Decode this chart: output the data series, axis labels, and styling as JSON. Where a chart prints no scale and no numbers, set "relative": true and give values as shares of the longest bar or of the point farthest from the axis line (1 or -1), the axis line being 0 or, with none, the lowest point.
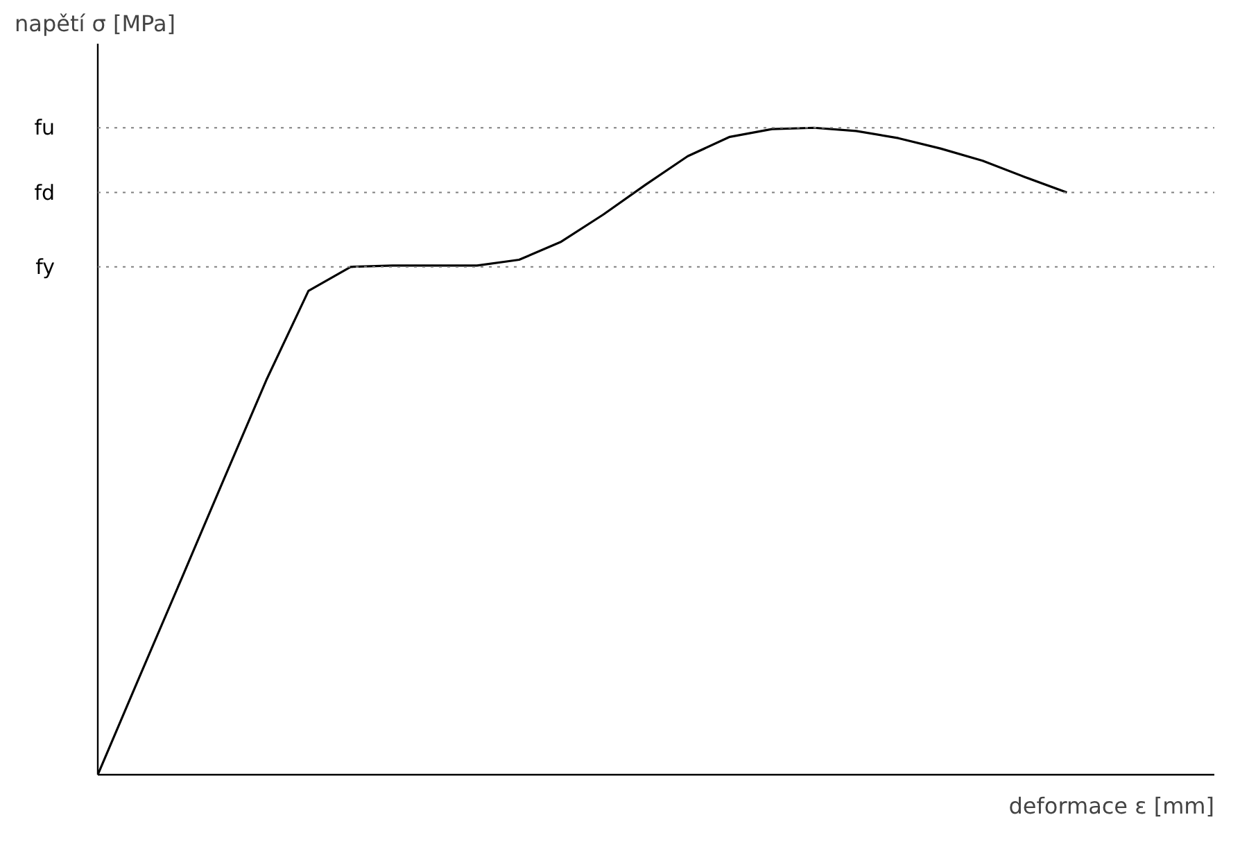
{
  "chart_data": {
    "type": "line",
    "relative": true,
    "xlabel": "deformace ε [mm]",
    "ylabel": "napětí σ [MPa]",
    "categories": [
      null,
      null,
      null,
      null,
      null,
      null,
      null,
      null,
      null,
      null,
      null,
      null,
      null,
      null,
      null,
      null,
      null,
      null,
      null,
      null,
      null,
      null,
      null,
      null
    ],
    "series": [
      {
        "color": "#000000",
        "values": [
          0,
          0.153,
          0.305,
          0.458,
          0.61,
          0.748,
          0.785,
          0.787,
          0.787,
          0.787,
          0.796,
          0.824,
          0.866,
          0.912,
          0.956,
          0.986,
          0.998,
          1.0,
          0.995,
          0.984,
          0.968,
          0.949,
          0.924,
          0.9
        ]
      }
    ],
    "ref_lines": [
      {
        "axis": "y",
        "value": 1.0,
        "label": "fu",
        "color": "#808080",
        "line_style": "dotted"
      },
      {
        "axis": "y",
        "value": 0.9,
        "label": "fd",
        "color": "#808080",
        "line_style": "dotted"
      },
      {
        "axis": "y",
        "value": 0.785,
        "label": "fy",
        "color": "#808080",
        "line_style": "dotted"
      }
    ],
    "grid": false,
    "marker": "none",
    "line_style": "solid"
  }
}
